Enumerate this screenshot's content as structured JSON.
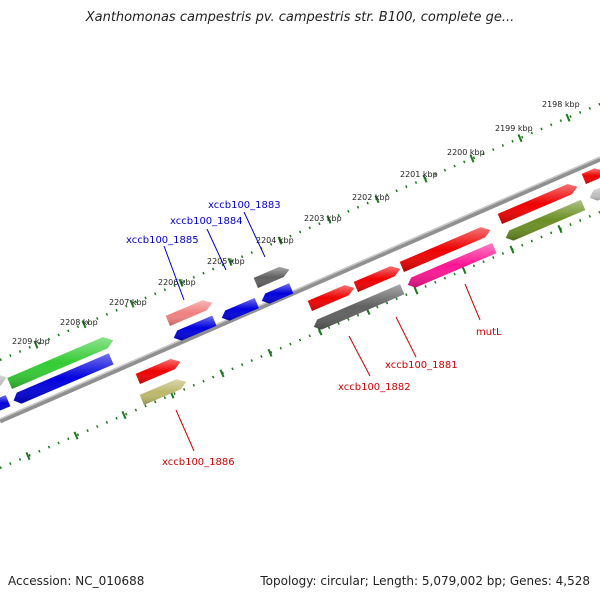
{
  "title": "Xanthomonas campestris pv. campestris str. B100, complete ge...",
  "footer": {
    "accession": "Accession: NC_010688",
    "summary": "Topology: circular; Length: 5,079,002 bp; Genes: 4,528"
  },
  "kbp_labels": [
    "2198 kbp",
    "2199 kbp",
    "2200 kbp",
    "2201 kbp",
    "2202 kbp",
    "2203 kbp",
    "2204 kbp",
    "2205 kbp",
    "2206 kbp",
    "2207 kbp",
    "2208 kbp",
    "2209 kbp"
  ],
  "gene_labels": {
    "xccb100_1883": "xccb100_1883",
    "xccb100_1884": "xccb100_1884",
    "xccb100_1885": "xccb100_1885",
    "xccb100_1886": "xccb100_1886",
    "xccb100_1882": "xccb100_1882",
    "xccb100_1881": "xccb100_1881",
    "mutL": "mutL"
  },
  "colors": {
    "backbone": "#888888",
    "ticks": "#1e7a1e",
    "blue_label": "#0000cc",
    "red_label": "#cc0000",
    "red": "#ee0000",
    "blue": "#0000dd",
    "green": "#33cc33",
    "olive": "#6b8e23",
    "khaki": "#bdb76b",
    "gray": "#606060",
    "pink": "#ff1493",
    "salmon": "#f08080",
    "silver": "#c0c0c0"
  }
}
